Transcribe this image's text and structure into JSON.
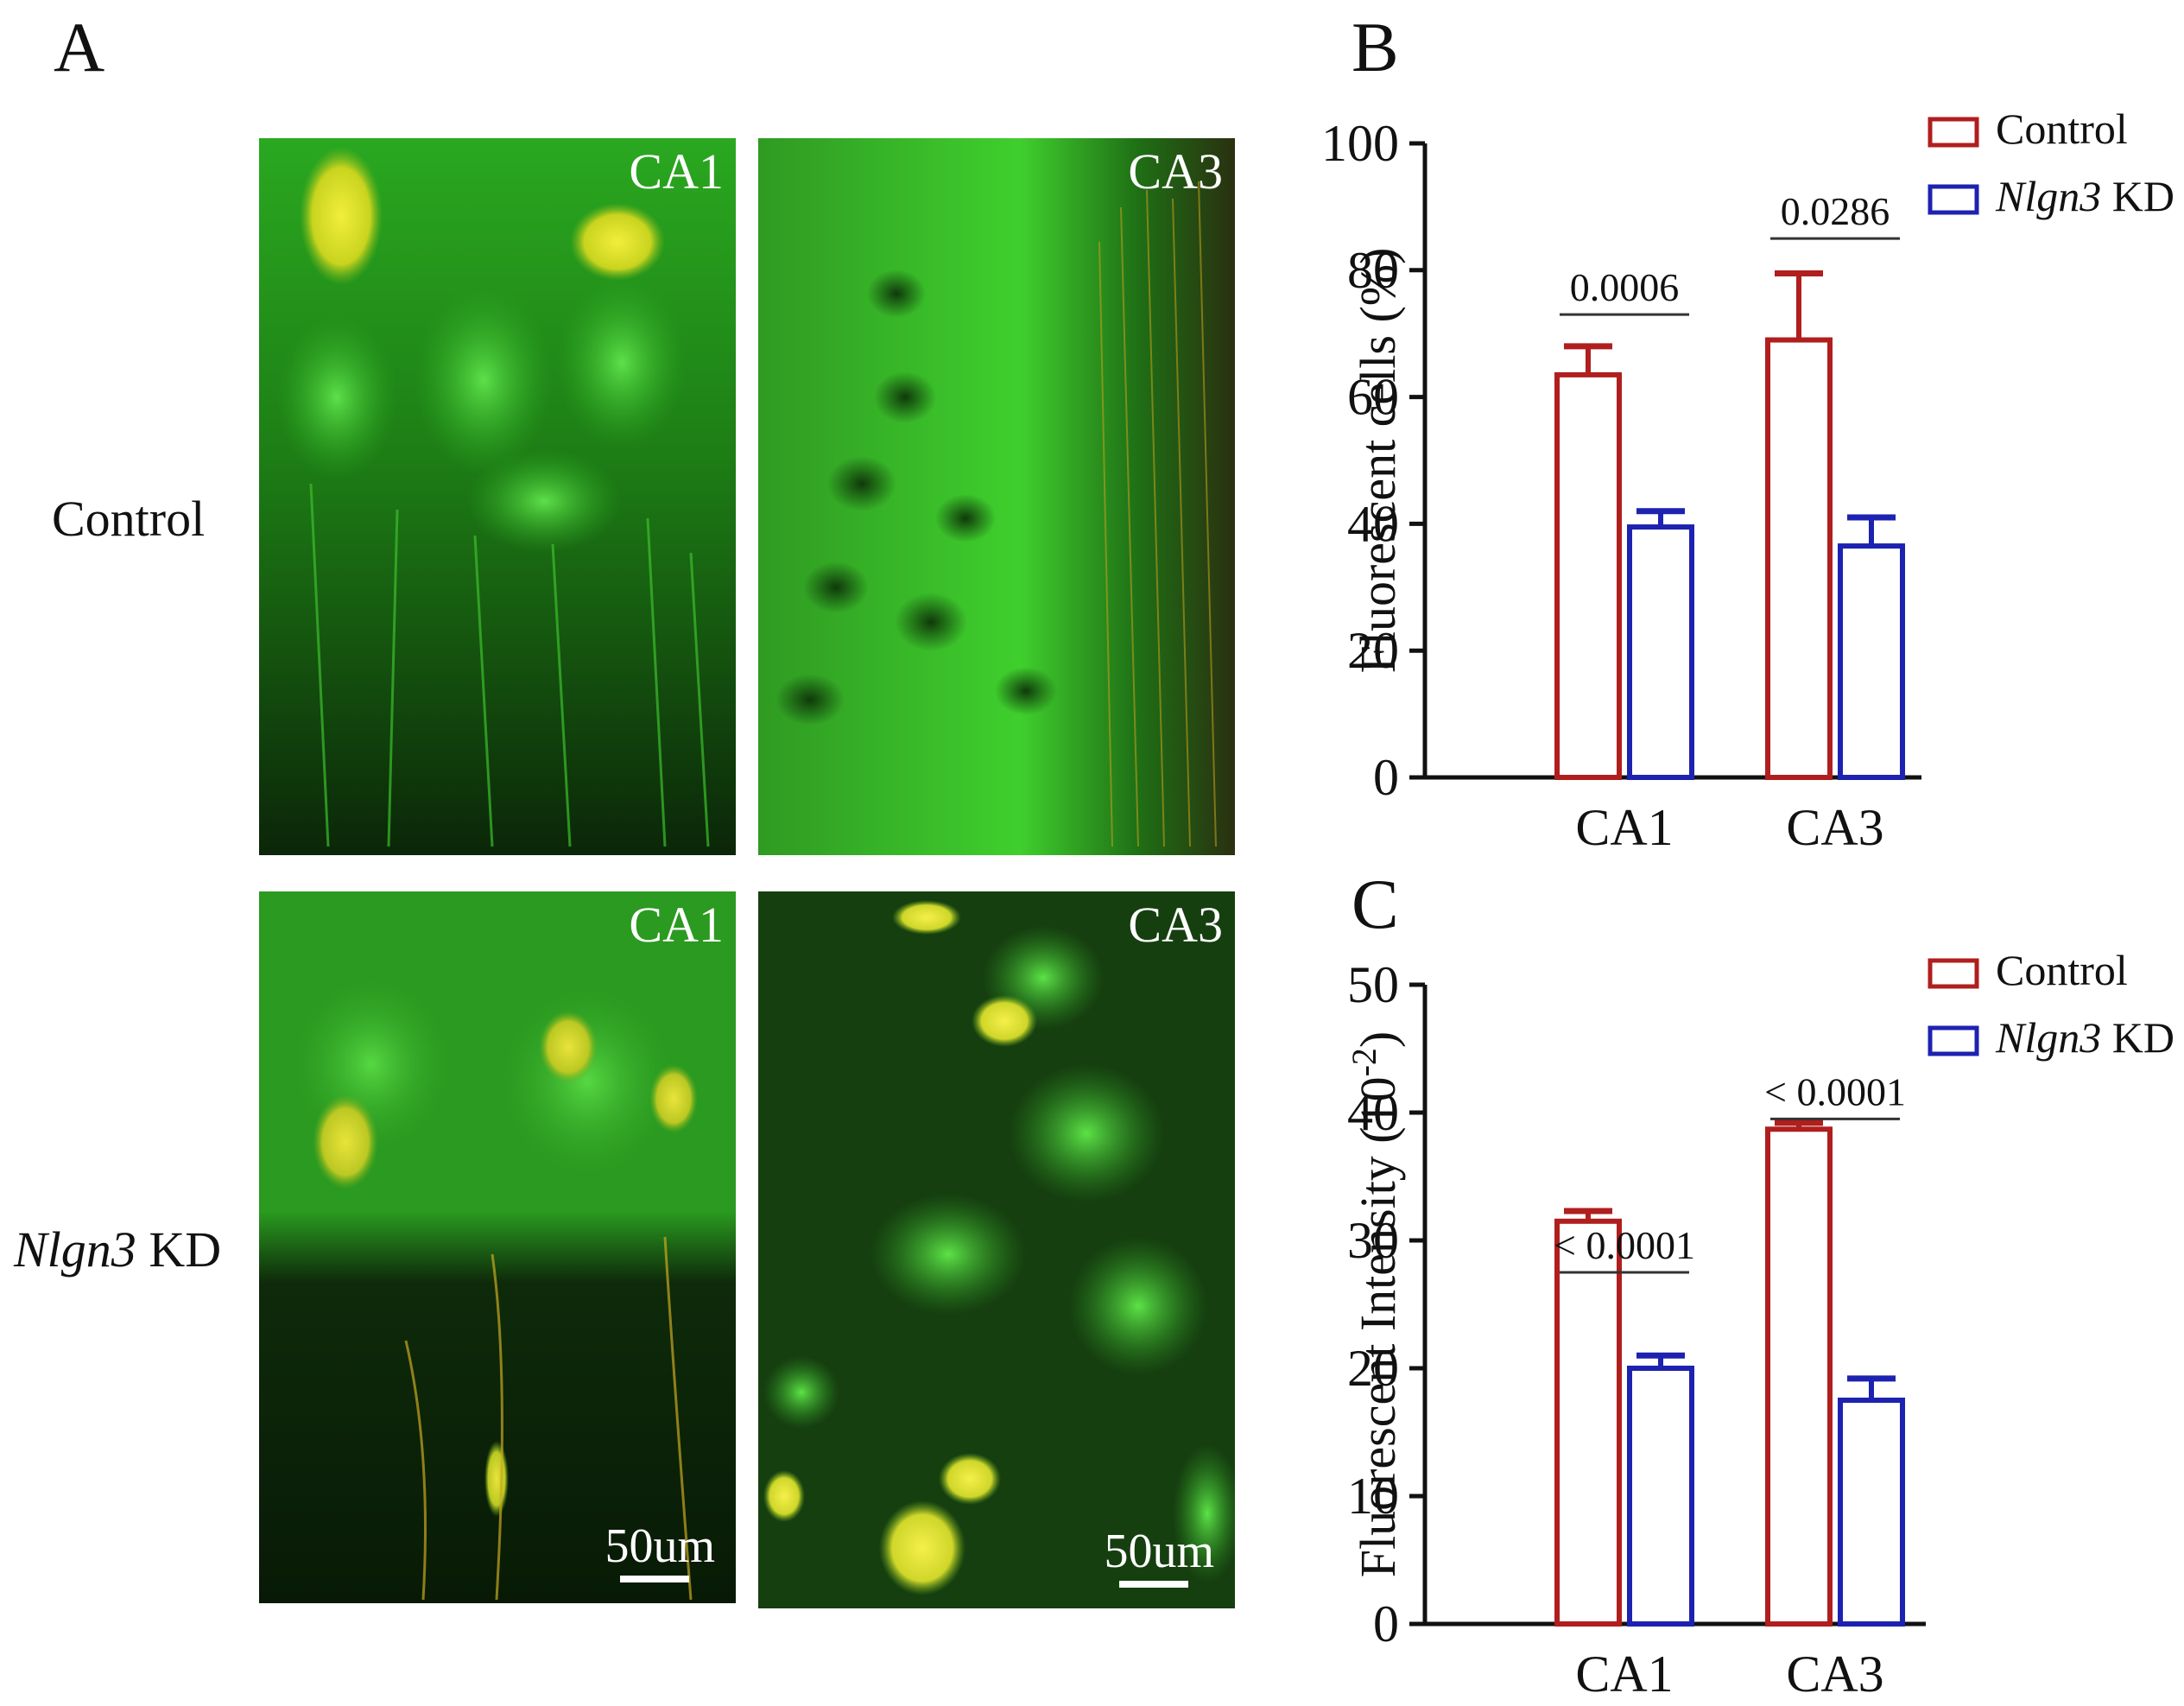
{
  "panels": {
    "a": "A",
    "b": "B",
    "c": "C"
  },
  "rows": {
    "control": "Control",
    "kd_gene": "Nlgn3",
    "kd_suffix": " KD"
  },
  "images": {
    "tl_region": "CA1",
    "tr_region": "CA3",
    "bl_region": "CA1",
    "br_region": "CA3",
    "scale_label": "50um"
  },
  "colors": {
    "control": "#b01e1e",
    "kd": "#1d22b0"
  },
  "chart_data": [
    {
      "type": "bar",
      "panel": "B",
      "categories": [
        "CA1",
        "CA3"
      ],
      "series": [
        {
          "name": "Control",
          "values": [
            63.5,
            69
          ],
          "errors": [
            4.5,
            10.5
          ]
        },
        {
          "name": "Nlgn3 KD",
          "values": [
            39.5,
            36.5
          ],
          "errors": [
            2.5,
            4.5
          ]
        }
      ],
      "ylabel": "Fluorescent cells (%)",
      "ylim": [
        0,
        100
      ],
      "yticks": [
        0,
        20,
        40,
        60,
        80,
        100
      ],
      "pvalues": [
        "0.0006",
        "0.0286"
      ],
      "legend": {
        "placement": "top-right",
        "items": [
          {
            "text": "Control"
          },
          {
            "text_italic": "Nlgn3",
            "text": " KD"
          }
        ]
      }
    },
    {
      "type": "bar",
      "panel": "C",
      "categories": [
        "CA1",
        "CA3"
      ],
      "series": [
        {
          "name": "Control",
          "values": [
            31.5,
            38.7
          ],
          "errors": [
            0.8,
            0.5
          ]
        },
        {
          "name": "Nlgn3 KD",
          "values": [
            20,
            17.5
          ],
          "errors": [
            1,
            1.7
          ]
        }
      ],
      "ylabel_main": "Fluorescent Intensity (10",
      "ylabel_exp": "-2",
      "ylabel_close": ")",
      "ylim": [
        0,
        50
      ],
      "yticks": [
        0,
        10,
        20,
        30,
        40,
        50
      ],
      "pvalues": [
        "< 0.0001",
        "< 0.0001"
      ],
      "legend": {
        "placement": "top-right",
        "items": [
          {
            "text": "Control"
          },
          {
            "text_italic": "Nlgn3",
            "text": " KD"
          }
        ]
      }
    }
  ]
}
